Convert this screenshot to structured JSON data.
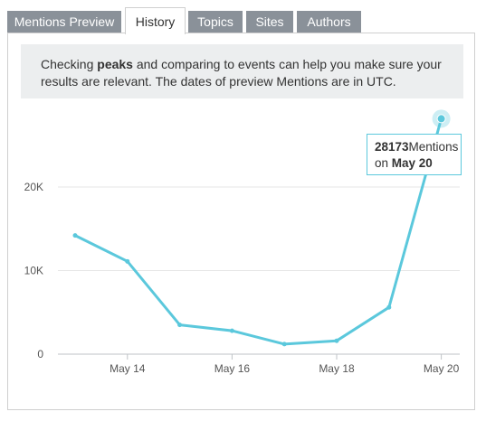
{
  "tabs": [
    {
      "label": "Mentions Preview",
      "active": false
    },
    {
      "label": "History",
      "active": true
    },
    {
      "label": "Topics",
      "active": false
    },
    {
      "label": "Sites",
      "active": false
    },
    {
      "label": "Authors",
      "active": false
    }
  ],
  "notice": {
    "pre": "Checking ",
    "bold": "peaks",
    "post": " and comparing to events can help you make sure your results are relevant. The dates of preview Mentions are in UTC."
  },
  "tooltip": {
    "value": "28173",
    "unit": "Mentions",
    "on": "on ",
    "date": "May 20"
  },
  "colors": {
    "series": "#5bc8dc",
    "tab_inactive": "#8a9199",
    "notice_bg": "#eceeef"
  },
  "chart_data": {
    "type": "line",
    "x": [
      "May 13",
      "May 14",
      "May 15",
      "May 16",
      "May 17",
      "May 18",
      "May 19",
      "May 20"
    ],
    "series": [
      {
        "values": [
          14200,
          11100,
          3500,
          2800,
          1200,
          1600,
          5600,
          28173
        ]
      }
    ],
    "x_tick_labels": [
      "May 14",
      "May 16",
      "May 18",
      "May 20"
    ],
    "y_ticks": [
      0,
      10000,
      20000
    ],
    "y_tick_labels": [
      "0",
      "10K",
      "20K"
    ],
    "ylim": [
      0,
      30000
    ],
    "grid": true,
    "legend": "none",
    "highlighted_point": "May 20"
  }
}
